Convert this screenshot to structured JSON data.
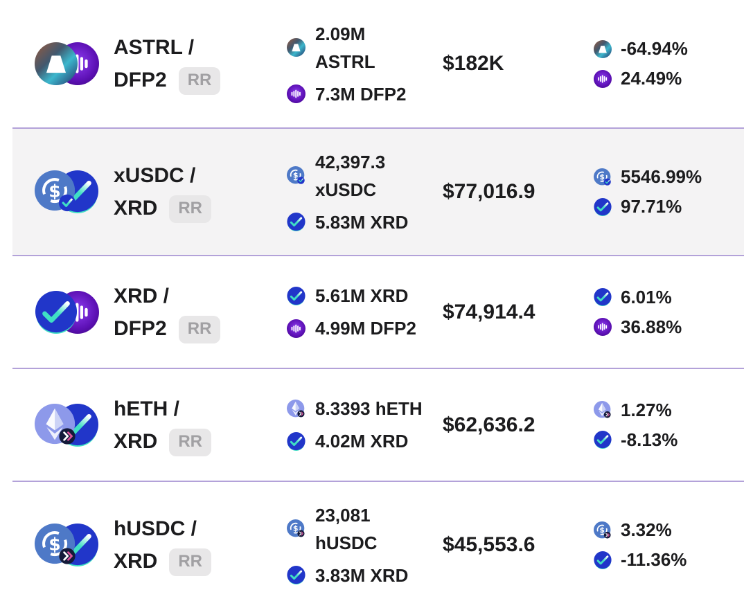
{
  "colors": {
    "text": "#1c1c1e",
    "divider": "#b3a2d9",
    "highlight_bg": "#f4f3f4",
    "badge_bg": "#e8e7e8",
    "badge_text": "#a1a0a3",
    "xrd_blue": "#2136c9",
    "xrd_teal": "#3fdfc4",
    "usdc_blue": "#4e79c7",
    "dfp2_light": "#8d3cf0",
    "dfp2_mid": "#5c10b4",
    "dfp2_dark": "#450a8e",
    "astrl_rust": "#9a5a3c",
    "astrl_slate": "#41586e",
    "astrl_cyan": "#3cb7cd",
    "astrl_navy": "#232e64",
    "heth_periwinkle": "#8d99ea",
    "heth_facet": "#ccd3f6",
    "h_badge_bg": "#141a3a",
    "h_badge_pink": "#e0559d"
  },
  "icons": {
    "astrl": "astrl-token-icon",
    "dfp2": "dfp2-token-icon",
    "xrd": "xrd-token-icon",
    "xusdc": "xusdc-token-icon",
    "heth": "heth-token-icon",
    "husdc": "husdc-token-icon"
  },
  "rows": [
    {
      "highlighted": false,
      "size": "tall",
      "pair": {
        "base": "ASTRL",
        "quote": "DFP2",
        "base_icon": "astrl",
        "quote_icon": "dfp2",
        "title_line1": "ASTRL /",
        "title_line2": "DFP2",
        "badge": "RR"
      },
      "amounts": [
        {
          "icon": "astrl",
          "lines": [
            "2.09M",
            "ASTRL"
          ]
        },
        {
          "icon": "dfp2",
          "lines": [
            "7.3M DFP2"
          ]
        }
      ],
      "value": "$182K",
      "changes": [
        {
          "icon": "astrl",
          "text": "-64.94%"
        },
        {
          "icon": "dfp2",
          "text": "24.49%"
        }
      ]
    },
    {
      "highlighted": true,
      "size": "tall",
      "pair": {
        "base": "xUSDC",
        "quote": "XRD",
        "base_icon": "xusdc",
        "quote_icon": "xrd",
        "title_line1": "xUSDC /",
        "title_line2": "XRD",
        "badge": "RR"
      },
      "amounts": [
        {
          "icon": "xusdc",
          "lines": [
            "42,397.3",
            "xUSDC"
          ]
        },
        {
          "icon": "xrd",
          "lines": [
            "5.83M XRD"
          ]
        }
      ],
      "value": "$77,016.9",
      "changes": [
        {
          "icon": "xusdc",
          "text": "5546.99%"
        },
        {
          "icon": "xrd",
          "text": "97.71%"
        }
      ]
    },
    {
      "highlighted": false,
      "size": "short",
      "pair": {
        "base": "XRD",
        "quote": "DFP2",
        "base_icon": "xrd",
        "quote_icon": "dfp2",
        "title_line1": "XRD /",
        "title_line2": "DFP2",
        "badge": "RR"
      },
      "amounts": [
        {
          "icon": "xrd",
          "lines": [
            "5.61M XRD"
          ]
        },
        {
          "icon": "dfp2",
          "lines": [
            "4.99M DFP2"
          ]
        }
      ],
      "value": "$74,914.4",
      "changes": [
        {
          "icon": "xrd",
          "text": "6.01%"
        },
        {
          "icon": "dfp2",
          "text": "36.88%"
        }
      ]
    },
    {
      "highlighted": false,
      "size": "short",
      "pair": {
        "base": "hETH",
        "quote": "XRD",
        "base_icon": "heth",
        "quote_icon": "xrd",
        "title_line1": "hETH /",
        "title_line2": "XRD",
        "badge": "RR"
      },
      "amounts": [
        {
          "icon": "heth",
          "lines": [
            "8.3393 hETH"
          ]
        },
        {
          "icon": "xrd",
          "lines": [
            "4.02M XRD"
          ]
        }
      ],
      "value": "$62,636.2",
      "changes": [
        {
          "icon": "heth",
          "text": "1.27%"
        },
        {
          "icon": "xrd",
          "text": "-8.13%"
        }
      ]
    },
    {
      "highlighted": false,
      "size": "tall",
      "pair": {
        "base": "hUSDC",
        "quote": "XRD",
        "base_icon": "husdc",
        "quote_icon": "xrd",
        "title_line1": "hUSDC /",
        "title_line2": "XRD",
        "badge": "RR"
      },
      "amounts": [
        {
          "icon": "husdc",
          "lines": [
            "23,081",
            "hUSDC"
          ]
        },
        {
          "icon": "xrd",
          "lines": [
            "3.83M XRD"
          ]
        }
      ],
      "value": "$45,553.6",
      "changes": [
        {
          "icon": "husdc",
          "text": "3.32%"
        },
        {
          "icon": "xrd",
          "text": "-11.36%"
        }
      ]
    }
  ]
}
